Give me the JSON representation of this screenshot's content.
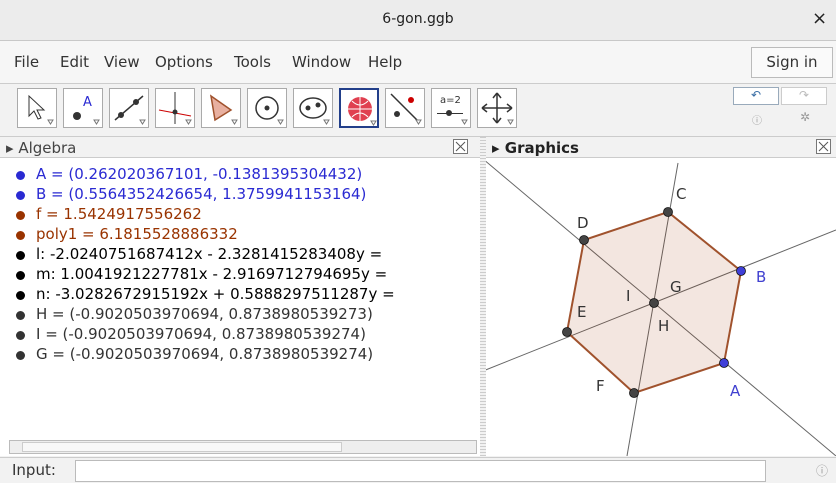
{
  "title_bar": {
    "title": "6-gon.ggb",
    "close": "×"
  },
  "menu": {
    "items": [
      "File",
      "Edit",
      "View",
      "Options",
      "Tools",
      "Window",
      "Help"
    ],
    "sign_in": "Sign in"
  },
  "toolbar": {
    "slider_icon": "a=2"
  },
  "algebra": {
    "header": "Algebra",
    "items": [
      {
        "text": "A = (0.262020367101, -0.1381395304432)",
        "color": "#2a2ad2"
      },
      {
        "text": "B = (0.5564352426654, 1.3759941153164)",
        "color": "#2a2ad2"
      },
      {
        "text": "f = 1.5424917556262",
        "color": "#993300"
      },
      {
        "text": "poly1 = 6.1815528886332",
        "color": "#993300"
      },
      {
        "text": "l: -2.0240751687412x - 2.3281415283408y = ",
        "color": "#000000"
      },
      {
        "text": "m: 1.0041921227781x - 2.9169712794695y = ",
        "color": "#000000"
      },
      {
        "text": "n: -3.0282672915192x + 0.5888297511287y = ",
        "color": "#000000"
      },
      {
        "text": "H = (-0.9020503970694, 0.8738980539273)",
        "color": "#333333"
      },
      {
        "text": "I = (-0.9020503970694, 0.8738980539274)",
        "color": "#333333"
      },
      {
        "text": "G = (-0.9020503970694, 0.8738980539274)",
        "color": "#333333"
      }
    ]
  },
  "graphics": {
    "header": "Graphics",
    "labels": [
      {
        "text": "A",
        "color": "#4040d0"
      },
      {
        "text": "B",
        "color": "#4040d0"
      },
      {
        "text": "C",
        "color": "#333333"
      },
      {
        "text": "D",
        "color": "#333333"
      },
      {
        "text": "E",
        "color": "#333333"
      },
      {
        "text": "F",
        "color": "#333333"
      },
      {
        "text": "G",
        "color": "#333333"
      },
      {
        "text": "H",
        "color": "#333333"
      },
      {
        "text": "I",
        "color": "#333333"
      }
    ]
  },
  "input_bar": {
    "label": "Input:"
  }
}
